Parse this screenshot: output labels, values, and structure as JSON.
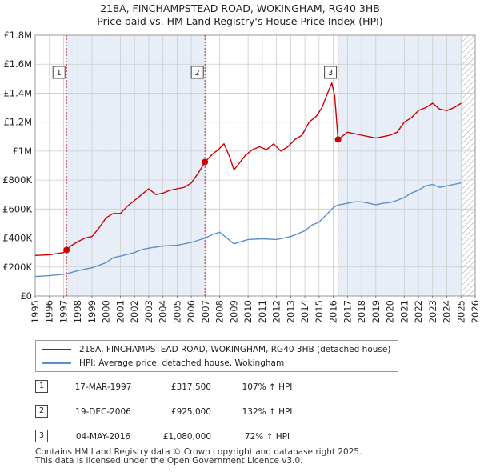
{
  "title": {
    "line1": "218A, FINCHAMPSTEAD ROAD, WOKINGHAM, RG40 3HB",
    "line2": "Price paid vs. HM Land Registry's House Price Index (HPI)"
  },
  "colors": {
    "property": "#cc0000",
    "hpi": "#5b8fc9",
    "shade": "#e8eef8",
    "grid": "#cccccc"
  },
  "legend": {
    "property_label": "218A, FINCHAMPSTEAD ROAD, WOKINGHAM, RG40 3HB (detached house)",
    "hpi_label": "HPI: Average price, detached house, Wokingham"
  },
  "sales": [
    {
      "num": "1",
      "date": "17-MAR-1997",
      "price": "£317,500",
      "hpi": "107% ↑ HPI"
    },
    {
      "num": "2",
      "date": "19-DEC-2006",
      "price": "£925,000",
      "hpi": "132% ↑ HPI"
    },
    {
      "num": "3",
      "date": "04-MAY-2016",
      "price": "£1,080,000",
      "hpi": "72% ↑ HPI"
    }
  ],
  "footer": {
    "line1": "Contains HM Land Registry data © Crown copyright and database right 2025.",
    "line2": "This data is licensed under the Open Government Licence v3.0."
  },
  "chart_data": {
    "type": "line",
    "xlim": [
      1995,
      2026
    ],
    "ylim": [
      0,
      1800000
    ],
    "ytick_values": [
      0,
      200000,
      400000,
      600000,
      800000,
      1000000,
      1200000,
      1400000,
      1600000,
      1800000
    ],
    "ytick_labels": [
      "£0",
      "£200K",
      "£400K",
      "£600K",
      "£800K",
      "£1M",
      "£1.2M",
      "£1.4M",
      "£1.6M",
      "£1.8M"
    ],
    "xtick_values": [
      1995,
      1996,
      1997,
      1998,
      1999,
      2000,
      2001,
      2002,
      2003,
      2004,
      2005,
      2006,
      2007,
      2008,
      2009,
      2010,
      2011,
      2012,
      2013,
      2014,
      2015,
      2016,
      2017,
      2018,
      2019,
      2020,
      2021,
      2022,
      2023,
      2024,
      2025,
      2026
    ],
    "xtick_labels": [
      "1995",
      "1996",
      "1997",
      "1998",
      "1999",
      "2000",
      "2001",
      "2002",
      "2003",
      "2004",
      "2005",
      "2006",
      "2007",
      "2008",
      "2009",
      "2010",
      "2011",
      "2012",
      "2013",
      "2014",
      "2015",
      "2016",
      "2017",
      "2018",
      "2019",
      "2020",
      "2021",
      "2022",
      "2023",
      "2024",
      "2025",
      "2026"
    ],
    "hatch_from": 2025.1,
    "series": [
      {
        "name": "218A, FINCHAMPSTEAD ROAD, WOKINGHAM, RG40 3HB (detached house)",
        "color": "#cc0000",
        "x": [
          1995.0,
          1996.0,
          1997.0,
          1997.21,
          1997.5,
          1998.0,
          1998.5,
          1999.0,
          1999.5,
          2000.0,
          2000.5,
          2001.0,
          2001.5,
          2002.0,
          2002.5,
          2003.0,
          2003.5,
          2004.0,
          2004.5,
          2005.0,
          2005.5,
          2006.0,
          2006.5,
          2006.96,
          2007.0,
          2007.5,
          2007.9,
          2008.3,
          2008.7,
          2009.0,
          2009.4,
          2009.8,
          2010.3,
          2010.8,
          2011.3,
          2011.8,
          2012.3,
          2012.8,
          2013.3,
          2013.8,
          2014.3,
          2014.8,
          2015.2,
          2015.6,
          2015.9,
          2016.1,
          2016.34,
          2016.6,
          2017.0,
          2017.5,
          2018.0,
          2018.5,
          2019.0,
          2019.5,
          2020.0,
          2020.5,
          2021.0,
          2021.5,
          2022.0,
          2022.5,
          2023.0,
          2023.5,
          2024.0,
          2024.5,
          2025.0
        ],
        "y": [
          280000,
          285000,
          300000,
          317500,
          345000,
          375000,
          400000,
          410000,
          470000,
          540000,
          570000,
          570000,
          620000,
          660000,
          700000,
          740000,
          700000,
          710000,
          730000,
          740000,
          750000,
          780000,
          850000,
          925000,
          930000,
          980000,
          1010000,
          1050000,
          960000,
          870000,
          920000,
          970000,
          1010000,
          1030000,
          1010000,
          1050000,
          1000000,
          1030000,
          1080000,
          1110000,
          1200000,
          1240000,
          1300000,
          1400000,
          1470000,
          1380000,
          1080000,
          1100000,
          1130000,
          1120000,
          1110000,
          1100000,
          1090000,
          1100000,
          1110000,
          1130000,
          1200000,
          1230000,
          1280000,
          1300000,
          1330000,
          1290000,
          1280000,
          1300000,
          1330000
        ]
      },
      {
        "name": "HPI: Average price, detached house, Wokingham",
        "color": "#5b8fc9",
        "x": [
          1995.0,
          1996.0,
          1997.0,
          1997.21,
          1998.0,
          1999.0,
          2000.0,
          2000.5,
          2001.0,
          2002.0,
          2002.5,
          2003.0,
          2004.0,
          2005.0,
          2006.0,
          2006.96,
          2007.5,
          2008.0,
          2008.5,
          2009.0,
          2009.5,
          2010.0,
          2011.0,
          2012.0,
          2013.0,
          2014.0,
          2014.5,
          2015.0,
          2015.5,
          2016.0,
          2016.34,
          2017.0,
          2017.5,
          2018.0,
          2018.5,
          2019.0,
          2019.5,
          2020.0,
          2020.5,
          2021.0,
          2021.5,
          2022.0,
          2022.5,
          2023.0,
          2023.5,
          2024.0,
          2024.5,
          2025.0
        ],
        "y": [
          135000,
          140000,
          150000,
          153000,
          175000,
          195000,
          230000,
          265000,
          275000,
          300000,
          320000,
          330000,
          345000,
          350000,
          370000,
          399000,
          425000,
          440000,
          400000,
          360000,
          375000,
          390000,
          395000,
          390000,
          410000,
          450000,
          490000,
          510000,
          560000,
          610000,
          628000,
          640000,
          650000,
          650000,
          640000,
          630000,
          640000,
          645000,
          660000,
          680000,
          710000,
          730000,
          760000,
          770000,
          750000,
          760000,
          770000,
          780000
        ]
      }
    ],
    "markers": [
      {
        "label": "1",
        "x": 1997.21,
        "y": 317500
      },
      {
        "label": "2",
        "x": 2006.96,
        "y": 925000
      },
      {
        "label": "3",
        "x": 2016.34,
        "y": 1080000
      }
    ]
  }
}
